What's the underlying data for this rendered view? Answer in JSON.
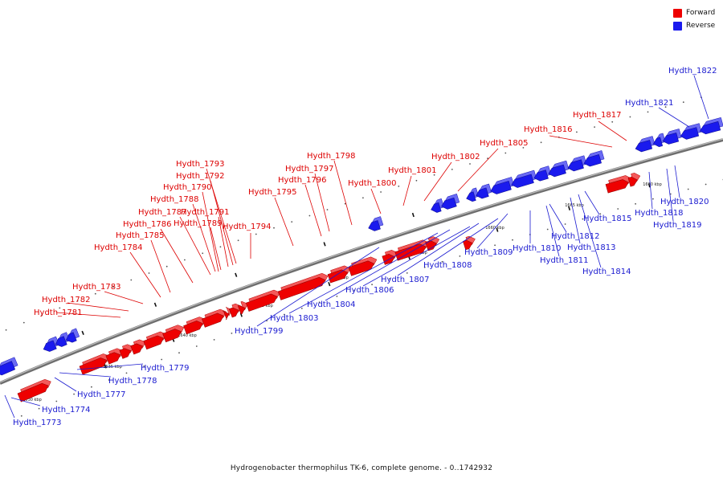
{
  "legend": {
    "forward_label": "Forward",
    "reverse_label": "Reverse",
    "forward_color": "#ee0000",
    "reverse_color": "#1a1aee"
  },
  "caption": "Hydrogenobacter thermophilus TK-6, complete genome. - 0..1742932",
  "scale_labels": [
    "1630 kbp",
    "1635 kbp",
    "1640 kbp",
    "1645 kbp",
    "1650 kbp",
    "1655 kbp",
    "1660 kbp",
    "1665 kbp",
    "1670 kbp"
  ],
  "forward_genes": [
    "Hydth_1781",
    "Hydth_1782",
    "Hydth_1783",
    "Hydth_1784",
    "Hydth_1785",
    "Hydth_1786",
    "Hydth_1787",
    "Hydth_1788",
    "Hydth_1789",
    "Hydth_1790",
    "Hydth_1791",
    "Hydth_1792",
    "Hydth_1793",
    "Hydth_1794",
    "Hydth_1795",
    "Hydth_1796",
    "Hydth_1797",
    "Hydth_1798",
    "Hydth_1800",
    "Hydth_1801",
    "Hydth_1802",
    "Hydth_1805",
    "Hydth_1816",
    "Hydth_1817"
  ],
  "reverse_genes": [
    "Hydth_1773",
    "Hydth_1774",
    "Hydth_1777",
    "Hydth_1778",
    "Hydth_1779",
    "Hydth_1799",
    "Hydth_1803",
    "Hydth_1804",
    "Hydth_1806",
    "Hydth_1807",
    "Hydth_1808",
    "Hydth_1809",
    "Hydth_1810",
    "Hydth_1811",
    "Hydth_1812",
    "Hydth_1813",
    "Hydth_1814",
    "Hydth_1815",
    "Hydth_1818",
    "Hydth_1819",
    "Hydth_1820",
    "Hydth_1821",
    "Hydth_1822"
  ]
}
